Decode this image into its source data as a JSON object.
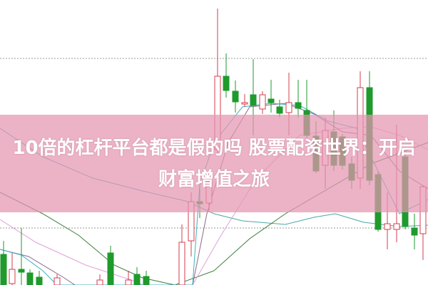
{
  "title": {
    "line1": "10倍的杠杆平台都是假的吗 股票配资世界：开启",
    "line2": "财富增值之旅"
  },
  "colors": {
    "up": "#d43c4c",
    "down": "#1f9a2c",
    "band": "#e496b2",
    "grid": "#9a9a9a"
  }
}
